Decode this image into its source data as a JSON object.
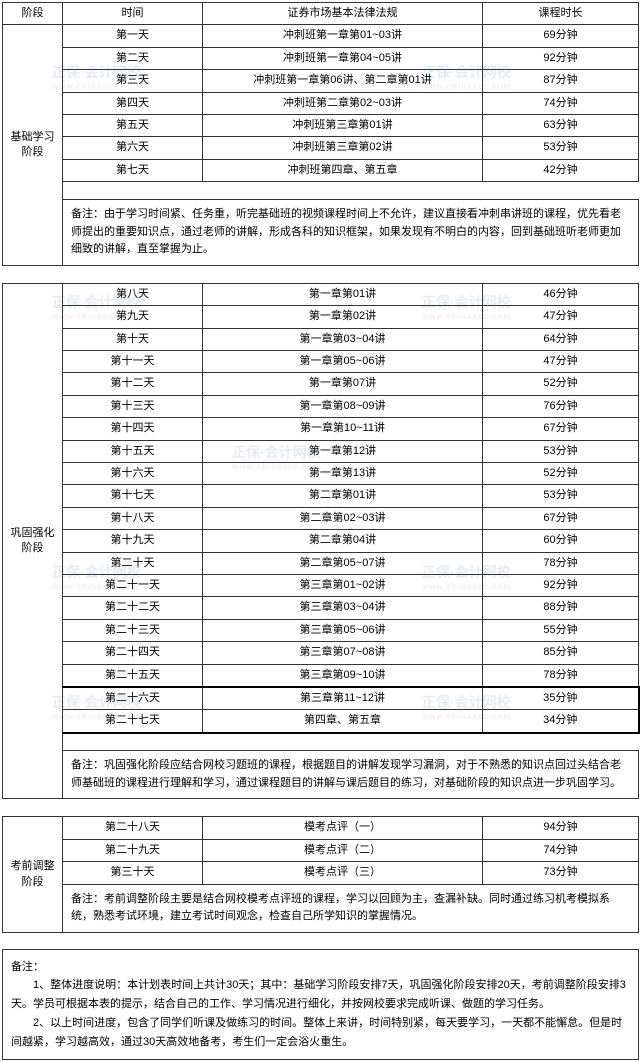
{
  "header": {
    "phase": "阶段",
    "time": "时间",
    "content": "证券市场基本法律法规",
    "duration": "课程时长"
  },
  "watermark": {
    "text1": "正保·会计网校",
    "text2": "www.chinaacc.com"
  },
  "phase1": {
    "name": "基础学习阶段",
    "rows": [
      {
        "time": "第一天",
        "content": "冲刺班第一章第01~03讲",
        "duration": "69分钟"
      },
      {
        "time": "第二天",
        "content": "冲刺班第一章第04~05讲",
        "duration": "92分钟"
      },
      {
        "time": "第三天",
        "content": "冲刺班第一章第06讲、第二章第01讲",
        "duration": "87分钟"
      },
      {
        "time": "第四天",
        "content": "冲刺班第二章第02~03讲",
        "duration": "74分钟"
      },
      {
        "time": "第五天",
        "content": "冲刺班第三章第01讲",
        "duration": "63分钟"
      },
      {
        "time": "第六天",
        "content": "冲刺班第三章第02讲",
        "duration": "53分钟"
      },
      {
        "time": "第七天",
        "content": "冲刺班第四章、第五章",
        "duration": "42分钟"
      }
    ],
    "note": "备注：由于学习时间紧、任务重，听完基础班的视频课程时间上不允许，建议直接看冲刺串讲班的课程，优先看老师提出的重要知识点，通过老师的讲解，形成各科的知识框架，如果发现有不明白的内容，回到基础班听老师更加细致的讲解，直至掌握为止。"
  },
  "phase2": {
    "name": "巩固强化阶段",
    "rows": [
      {
        "time": "第八天",
        "content": "第一章第01讲",
        "duration": "46分钟"
      },
      {
        "time": "第九天",
        "content": "第一章第02讲",
        "duration": "47分钟"
      },
      {
        "time": "第十天",
        "content": "第一章第03~04讲",
        "duration": "64分钟"
      },
      {
        "time": "第十一天",
        "content": "第一章第05~06讲",
        "duration": "47分钟"
      },
      {
        "time": "第十二天",
        "content": "第一章第07讲",
        "duration": "52分钟"
      },
      {
        "time": "第十三天",
        "content": "第一章第08~09讲",
        "duration": "76分钟"
      },
      {
        "time": "第十四天",
        "content": "第一章第10~11讲",
        "duration": "67分钟"
      },
      {
        "time": "第十五天",
        "content": "第一章第12讲",
        "duration": "53分钟"
      },
      {
        "time": "第十六天",
        "content": "第一章第13讲",
        "duration": "52分钟"
      },
      {
        "time": "第十七天",
        "content": "第二章第01讲",
        "duration": "53分钟"
      },
      {
        "time": "第十八天",
        "content": "第二章第02~03讲",
        "duration": "67分钟"
      },
      {
        "time": "第十九天",
        "content": "第二章第04讲",
        "duration": "60分钟"
      },
      {
        "time": "第二十天",
        "content": "第二章第05~07讲",
        "duration": "78分钟"
      },
      {
        "time": "第二十一天",
        "content": "第三章第01~02讲",
        "duration": "92分钟"
      },
      {
        "time": "第二十二天",
        "content": "第三章第03~04讲",
        "duration": "88分钟"
      },
      {
        "time": "第二十三天",
        "content": "第三章第05~06讲",
        "duration": "55分钟"
      },
      {
        "time": "第二十四天",
        "content": "第三章第07~08讲",
        "duration": "85分钟"
      },
      {
        "time": "第二十五天",
        "content": "第三章第09~10讲",
        "duration": "78分钟"
      },
      {
        "time": "第二十六天",
        "content": "第三章第11~12讲",
        "duration": "35分钟"
      },
      {
        "time": "第二十七天",
        "content": "第四章、第五章",
        "duration": "34分钟"
      }
    ],
    "note": "备注：巩固强化阶段应结合网校习题班的课程，根据题目的讲解发现学习漏洞，对于不熟悉的知识点回过头结合老师基础班的课程进行理解和学习，通过课程题目的讲解与课后题目的练习，对基础阶段的知识点进一步巩固学习。"
  },
  "phase3": {
    "name": "考前调整阶段",
    "rows": [
      {
        "time": "第二十八天",
        "content": "模考点评（一）",
        "duration": "94分钟"
      },
      {
        "time": "第二十九天",
        "content": "模考点评（二）",
        "duration": "74分钟"
      },
      {
        "time": "第三十天",
        "content": "模考点评（三）",
        "duration": "73分钟"
      }
    ],
    "note": "备注：考前调整阶段主要是结合网校模考点评班的课程，学习以回顾为主，查漏补缺。同时通过练习机考模拟系统，熟悉考试环境，建立考试时间观念，检查自己所学知识的掌握情况。"
  },
  "finalNotes": {
    "title": "备注：",
    "line1": "1、整体进度说明：本计划表时间上共计30天；其中：基础学习阶段安排7天，巩固强化阶段安排20天，考前调整阶段安排3天。学员可根据本表的提示，结合自己的工作、学习情况进行细化，并按网校要求完成听课、做题的学习任务。",
    "line2": "2、以上时间进度，包含了同学们听课及做练习的时间。整体上来讲，时间特别紧，每天要学习，一天都不能懈怠。但是时间越紧，学习越高效，通过30天高效地备考，考生们一定会浴火重生。"
  },
  "colors": {
    "border": "#333333",
    "background": "#ffffff",
    "watermark": "#2a72b5"
  }
}
